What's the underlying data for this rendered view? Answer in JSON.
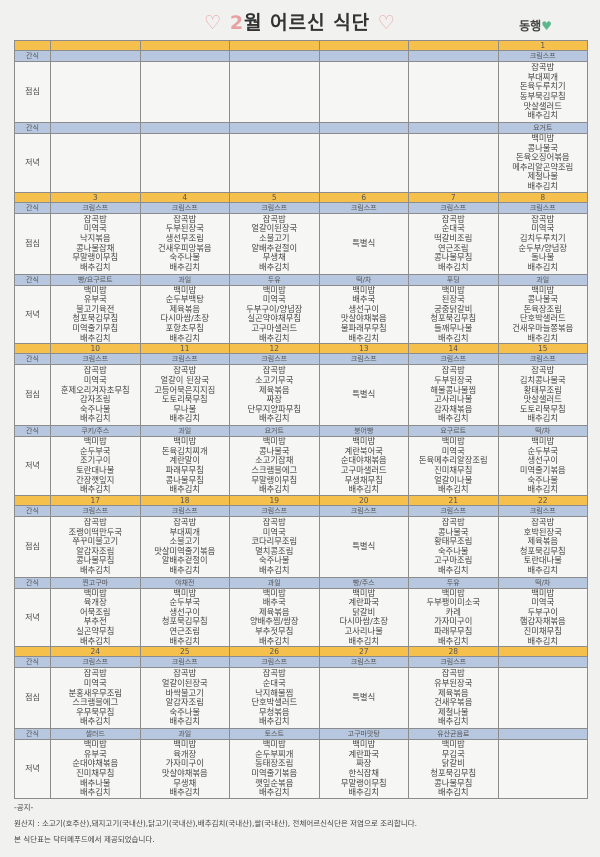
{
  "header": {
    "heart_left": "♡",
    "month": "2",
    "title_rest": "월 어르신 식단",
    "heart_right": "♡",
    "brand": "동행",
    "brand_heart": "♥"
  },
  "labels": {
    "snack": "간식",
    "lunch": "점심",
    "dinner": "저녁"
  },
  "colors": {
    "date_row": "#f5c04c",
    "snack_row": "#b7c7df",
    "accent_pink": "#e7a1a1",
    "brand_green": "#5cb88a"
  },
  "weeks": [
    {
      "days": [
        null,
        null,
        null,
        null,
        null,
        {
          "date": "1",
          "snack1": "크림스프",
          "lunch": [
            "잡곡밥",
            "부대찌개",
            "돈육두루치기",
            "동부묵김무침",
            "맛살샐러드",
            "배추김치"
          ],
          "snack2": "요거트",
          "dinner": [
            "백미밥",
            "콩나물국",
            "돈육오징어볶음",
            "메추리알곤약조림",
            "제철나물",
            "배추김치"
          ]
        }
      ]
    },
    {
      "days": [
        {
          "date": "3",
          "snack1": "크림스프",
          "lunch": [
            "잡곡밥",
            "미역국",
            "낙지볶음",
            "콩나물잡채",
            "무말랭이무침",
            "배추김치"
          ],
          "snack2": "빵/요구르트",
          "dinner": [
            "백미밥",
            "유부국",
            "불고기육전",
            "청포묵김무침",
            "미역줄기무침",
            "배추김치"
          ]
        },
        {
          "date": "4",
          "snack1": "크림스프",
          "lunch": [
            "잡곡밥",
            "두부된장국",
            "생선무조림",
            "건새우피망볶음",
            "숙주나물",
            "배추김치"
          ],
          "snack2": "과일",
          "dinner": [
            "백미밥",
            "순두부백탕",
            "제육볶음",
            "다시마쌈/초장",
            "포항초무침",
            "배추김치"
          ]
        },
        {
          "date": "5",
          "snack1": "크림스프",
          "lunch": [
            "잡곡밥",
            "얼갈이된장국",
            "소불고기",
            "알배추겉절이",
            "무생채",
            "배추김치"
          ],
          "snack2": "두유",
          "dinner": [
            "백미밥",
            "미역국",
            "두부구이/양념장",
            "실곤약야채무침",
            "고구마샐러드",
            "배추김치"
          ]
        },
        {
          "date": "6",
          "snack1": "크림스프",
          "lunch": [
            "특별식"
          ],
          "snack2": "떡/차",
          "dinner": [
            "백미밥",
            "배추국",
            "생선구이",
            "맛살야채볶음",
            "물파래무무침",
            "배추김치"
          ]
        },
        {
          "date": "7",
          "snack1": "크림스프",
          "lunch": [
            "잡곡밥",
            "순대국",
            "떡갈비조림",
            "연근조림",
            "콩나물무침",
            "배추김치"
          ],
          "snack2": "푸딩",
          "dinner": [
            "백미밥",
            "된장국",
            "궁중닭갈비",
            "청포묵김무침",
            "들깨무나물",
            "배추김치"
          ]
        },
        {
          "date": "8",
          "snack1": "크림스프",
          "lunch": [
            "잡곡밥",
            "미역국",
            "김치두루치기",
            "순두부/양념장",
            "돌나물",
            "배추김치"
          ],
          "snack2": "과일",
          "dinner": [
            "백미밥",
            "콩나물국",
            "돈육장조림",
            "단호박샐러드",
            "건새우마늘쫑볶음",
            "배추김치"
          ]
        }
      ]
    },
    {
      "days": [
        {
          "date": "10",
          "snack1": "크림스프",
          "lunch": [
            "잡곡밥",
            "미역국",
            "훈제오리겨자초무침",
            "감자조림",
            "숙주나물",
            "배추김치"
          ],
          "snack2": "쿠키/주스",
          "dinner": [
            "백미밥",
            "순두부국",
            "조기구이",
            "토란대나물",
            "간장깻잎지",
            "배추김치"
          ]
        },
        {
          "date": "11",
          "snack1": "크림스프",
          "lunch": [
            "잡곡밥",
            "얼갈이 된장국",
            "고등어묵은지지짐",
            "도토리묵무침",
            "무나물",
            "배추김치"
          ],
          "snack2": "과일",
          "dinner": [
            "백미밥",
            "돈육김치찌개",
            "계란말이",
            "파래무무침",
            "콩나물무침",
            "배추김치"
          ]
        },
        {
          "date": "12",
          "snack1": "크림스프",
          "lunch": [
            "잡곡밥",
            "소고기무국",
            "제육볶음",
            "짜장",
            "단무지양파무침",
            "배추김치"
          ],
          "snack2": "요거트",
          "dinner": [
            "백미밥",
            "콩나물국",
            "소고기잡채",
            "스크램블에그",
            "무말랭이무침",
            "배추김치"
          ]
        },
        {
          "date": "13",
          "snack1": "크림스프",
          "lunch": [
            "특별식"
          ],
          "snack2": "붕어빵",
          "dinner": [
            "백미밥",
            "계란북어국",
            "순대야채볶음",
            "고구마샐러드",
            "무생채무침",
            "배추김치"
          ]
        },
        {
          "date": "14",
          "snack1": "크림스프",
          "lunch": [
            "잡곡밥",
            "두부된장국",
            "해물콩나물찜",
            "고사리나물",
            "감자채볶음",
            "배추김치"
          ],
          "snack2": "요구르트",
          "dinner": [
            "백미밥",
            "미역국",
            "돈육메추리알장조림",
            "진미채무침",
            "얼갈이나물",
            "배추김치"
          ]
        },
        {
          "date": "15",
          "snack1": "크림스프",
          "lunch": [
            "잡곡밥",
            "김치콩나물국",
            "황태무조림",
            "맛살샐러드",
            "도토리묵무침",
            "배추김치"
          ],
          "snack2": "떡/차",
          "dinner": [
            "백미밥",
            "순두부국",
            "생선구이",
            "미역줄기볶음",
            "숙주나물",
            "배추김치"
          ]
        }
      ]
    },
    {
      "days": [
        {
          "date": "17",
          "snack1": "크림스프",
          "lunch": [
            "잡곡밥",
            "조랭이떡만두국",
            "쭈꾸미불고기",
            "알감자조림",
            "콩나물무침",
            "배추김치"
          ],
          "snack2": "찐고구마",
          "dinner": [
            "백미밥",
            "육개장",
            "어묵조림",
            "부추전",
            "실곤약무침",
            "배추김치"
          ]
        },
        {
          "date": "18",
          "snack1": "크림스프",
          "lunch": [
            "잡곡밥",
            "부대찌개",
            "소불고기",
            "맛살미역줄기볶음",
            "알배추겉절이",
            "배추김치"
          ],
          "snack2": "야채전",
          "dinner": [
            "백미밥",
            "순두부국",
            "생선구이",
            "청포묵김무침",
            "연근조림",
            "배추김치"
          ]
        },
        {
          "date": "19",
          "snack1": "크림스프",
          "lunch": [
            "잡곡밥",
            "미역국",
            "코다리무조림",
            "멸치콩조림",
            "숙주나물",
            "배추김치"
          ],
          "snack2": "과일",
          "dinner": [
            "백미밥",
            "배추국",
            "제육볶음",
            "양배추찜/쌈장",
            "부추젓무침",
            "배추김치"
          ]
        },
        {
          "date": "20",
          "snack1": "크림스프",
          "lunch": [
            "특별식"
          ],
          "snack2": "빵/주스",
          "dinner": [
            "백미밥",
            "계란파국",
            "닭갈비",
            "다시마쌈/초장",
            "고사리나물",
            "배추김치"
          ]
        },
        {
          "date": "21",
          "snack1": "크림스프",
          "lunch": [
            "잡곡밥",
            "콩나물국",
            "황태무조림",
            "숙주나물",
            "고구마조림",
            "배추김치"
          ],
          "snack2": "두유",
          "dinner": [
            "백미밥",
            "두부팽이미소국",
            "카레",
            "가자미구이",
            "파래무무침",
            "배추김치"
          ]
        },
        {
          "date": "22",
          "snack1": "크림스프",
          "lunch": [
            "잡곡밥",
            "호박된장국",
            "제육볶음",
            "청포묵김무침",
            "토란대나물",
            "배추김치"
          ],
          "snack2": "떡/차",
          "dinner": [
            "백미밥",
            "미역국",
            "두부구이",
            "햄감자채볶음",
            "진미채무침",
            "배추김치"
          ]
        }
      ]
    },
    {
      "days": [
        {
          "date": "24",
          "snack1": "크림스프",
          "lunch": [
            "잡곡밥",
            "미역국",
            "분홍새우무조림",
            "스크램블에그",
            "우무묵무침",
            "배추김치"
          ],
          "snack2": "샐러드",
          "dinner": [
            "백미밥",
            "유부국",
            "순대야채볶음",
            "진미채무침",
            "배추나물",
            "배추김치"
          ]
        },
        {
          "date": "25",
          "snack1": "크림스프",
          "lunch": [
            "잡곡밥",
            "얼갈이된장국",
            "바싹불고기",
            "알감자조림",
            "숙주나물",
            "배추김치"
          ],
          "snack2": "과일",
          "dinner": [
            "백미밥",
            "육개장",
            "가자미구이",
            "맛살야채볶음",
            "무생채",
            "배추김치"
          ]
        },
        {
          "date": "26",
          "snack1": "크림스프",
          "lunch": [
            "잡곡밥",
            "순대국",
            "낙지해물찜",
            "단호박샐러드",
            "무청볶음",
            "배추김치"
          ],
          "snack2": "토스트",
          "dinner": [
            "백미밥",
            "순두부찌개",
            "동태장조림",
            "미역줄기볶음",
            "깻잎순볶음",
            "배추김치"
          ]
        },
        {
          "date": "27",
          "snack1": "크림스프",
          "lunch": [
            "특별식"
          ],
          "snack2": "고구마맛탕",
          "dinner": [
            "백미밥",
            "계란파국",
            "짜장",
            "한식잡채",
            "무말랭이무침",
            "배추김치"
          ]
        },
        {
          "date": "28",
          "snack1": "크림스프",
          "lunch": [
            "잡곡밥",
            "유부된장국",
            "제육볶음",
            "건새우볶음",
            "제철나물",
            "배추김치"
          ],
          "snack2": "유산균음료",
          "dinner": [
            "백미밥",
            "무김국",
            "닭갈비",
            "청포묵김무침",
            "콩나물무침",
            "배추김치"
          ]
        },
        null
      ]
    }
  ],
  "notice": {
    "heading": "-공지-",
    "origin": "원산지 : 소고기(호주산),돼지고기(국내산),닭고기(국내산),배추김치(국내산),쌀(국내산), 전체어르신식단은 저염으로 조리합니다.",
    "provider": "본 식단표는 닥터메푸드에서 제공되었습니다."
  }
}
